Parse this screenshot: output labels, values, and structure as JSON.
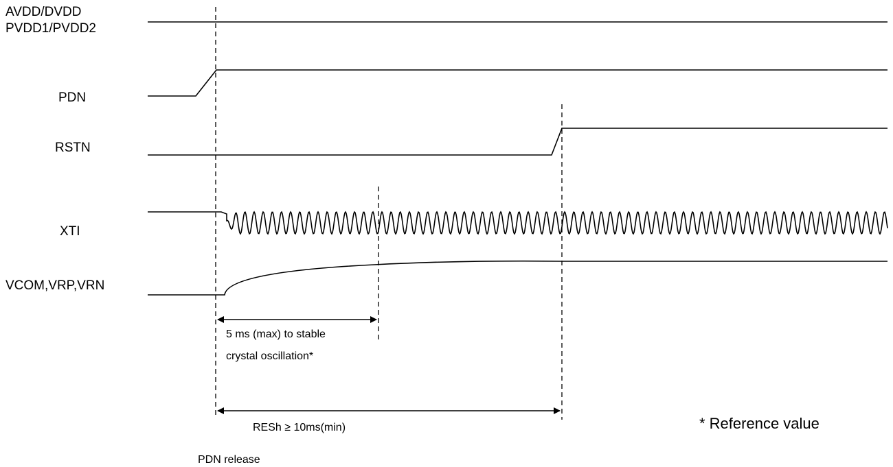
{
  "signals": {
    "power": [
      "AVDD/DVDD",
      "PVDD1/PVDD2"
    ],
    "pdn": "PDN",
    "rstn": "RSTN",
    "xti": "XTI",
    "vcom": "VCOM,VRP,VRN"
  },
  "annotations": {
    "osc_line1": "5 ms (max) to stable",
    "osc_line2": "crystal oscillation*",
    "resh": "RESh ≥ 10ms(min)",
    "reference": "* Reference value",
    "pdn_release": "PDN release"
  }
}
